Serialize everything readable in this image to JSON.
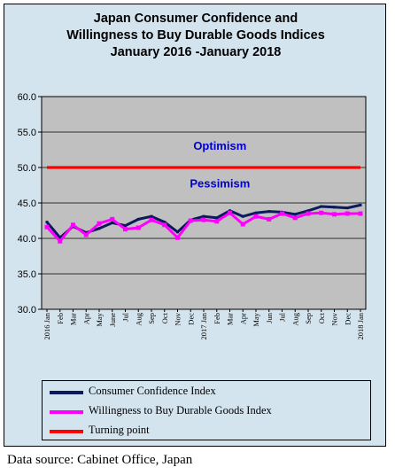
{
  "chart_data": {
    "type": "line",
    "title": [
      "Japan Consumer Confidence and",
      "Willingness to Buy Durable Goods Indices",
      "January 2016 -January 2018"
    ],
    "categories": [
      "2016 Jan",
      "Feb",
      "Mar",
      "Apr",
      "May",
      "June",
      "Jul",
      "Aug",
      "Sep",
      "Oct",
      "Nov",
      "Dec",
      "2017 Jan",
      "Feb",
      "Mar",
      "Apr",
      "May",
      "Jun",
      "Jul",
      "Aug",
      "Sep",
      "Oct",
      "Nov",
      "Dec",
      "2018 Jan"
    ],
    "ylim": [
      30.0,
      60.0
    ],
    "yticks": [
      "60.0",
      "55.0",
      "50.0",
      "45.0",
      "40.0",
      "35.0",
      "30.0"
    ],
    "ytick_values": [
      60,
      55,
      50,
      45,
      40,
      35,
      30
    ],
    "grid": true,
    "series": [
      {
        "name": "Consumer Confidence Index",
        "color": "#0a1a5c",
        "values": [
          42.3,
          40.1,
          41.7,
          40.8,
          41.4,
          42.2,
          41.8,
          42.7,
          43.1,
          42.3,
          40.9,
          42.6,
          43.1,
          42.9,
          43.9,
          43.1,
          43.6,
          43.8,
          43.7,
          43.4,
          43.9,
          44.5,
          44.4,
          44.3,
          44.7
        ]
      },
      {
        "name": "Willingness to Buy Durable Goods Index",
        "color": "#ff00ff",
        "values": [
          41.6,
          39.6,
          41.9,
          40.5,
          42.1,
          42.7,
          41.3,
          41.5,
          42.6,
          41.9,
          40.1,
          42.5,
          42.6,
          42.4,
          43.6,
          42.0,
          43.1,
          42.7,
          43.5,
          42.9,
          43.5,
          43.6,
          43.4,
          43.5,
          43.5
        ]
      },
      {
        "name": "Turning point",
        "color": "#ff0000",
        "values": [
          50,
          50,
          50,
          50,
          50,
          50,
          50,
          50,
          50,
          50,
          50,
          50,
          50,
          50,
          50,
          50,
          50,
          50,
          50,
          50,
          50,
          50,
          50,
          50,
          50
        ]
      }
    ],
    "annotations": [
      {
        "text": "Optimism",
        "color": "#0000cc",
        "y": 52.5
      },
      {
        "text": "Pessimism",
        "color": "#0000cc",
        "y": 47.2
      }
    ],
    "legend_placement": "bottom"
  },
  "source_text": "Data source: Cabinet Office, Japan"
}
